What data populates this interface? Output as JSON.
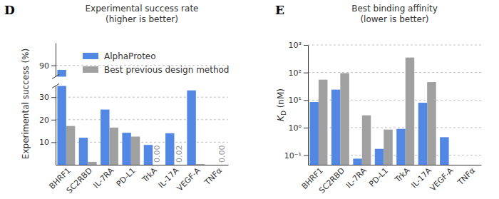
{
  "chart_data": [
    {
      "type": "bar",
      "panel_label": "D",
      "title": "Experimental success rate",
      "subtitle": "(higher is better)",
      "y_label": "Experimental success (%)",
      "categories": [
        "BHRF1",
        "SC2RBD",
        "IL-7RA",
        "PD-L1",
        "TrkA",
        "IL-17A",
        "VEGF-A",
        "TNFα"
      ],
      "series": [
        {
          "name": "AlphaProteo",
          "color": "#5287e3",
          "values": [
            88,
            12,
            24.5,
            14.2,
            8.8,
            14,
            33,
            0
          ]
        },
        {
          "name": "Best previous design method",
          "color": "#a0a0a0",
          "values": [
            17.2,
            1.3,
            16.5,
            12.5,
            0,
            0.02,
            0.3,
            0
          ],
          "value_labels": [
            null,
            null,
            null,
            null,
            "0.00",
            "0.02",
            null,
            "0.00"
          ]
        }
      ],
      "ylim": [
        0,
        100
      ],
      "yticks": [
        10,
        20,
        30,
        90
      ],
      "grid": true,
      "legend": "upper left"
    },
    {
      "type": "bar",
      "panel_label": "E",
      "title": "Best binding affinity",
      "subtitle": "(lower is better)",
      "y_label": "KD (nM)",
      "categories": [
        "BHRF1",
        "SC2RBD",
        "IL-7RA",
        "PD-L1",
        "TrkA",
        "IL-17A",
        "VEGF-A",
        "TNFα"
      ],
      "series": [
        {
          "color": "#5287e3",
          "values": [
            8.5,
            24,
            0.075,
            0.17,
            0.9,
            8,
            0.45,
            null
          ]
        },
        {
          "color": "#a0a0a0",
          "values": [
            55,
            95,
            2.8,
            0.85,
            350,
            45,
            null,
            null
          ]
        }
      ],
      "ylim": [
        0.045,
        1000
      ],
      "yticks": [
        {
          "value": 0.1,
          "label": "10⁻¹"
        },
        {
          "value": 1,
          "label": "10⁰"
        },
        {
          "value": 10,
          "label": "10¹"
        },
        {
          "value": 100,
          "label": "10²"
        },
        {
          "value": 1000,
          "label": "10³"
        }
      ],
      "log": "y",
      "grid": true
    }
  ]
}
